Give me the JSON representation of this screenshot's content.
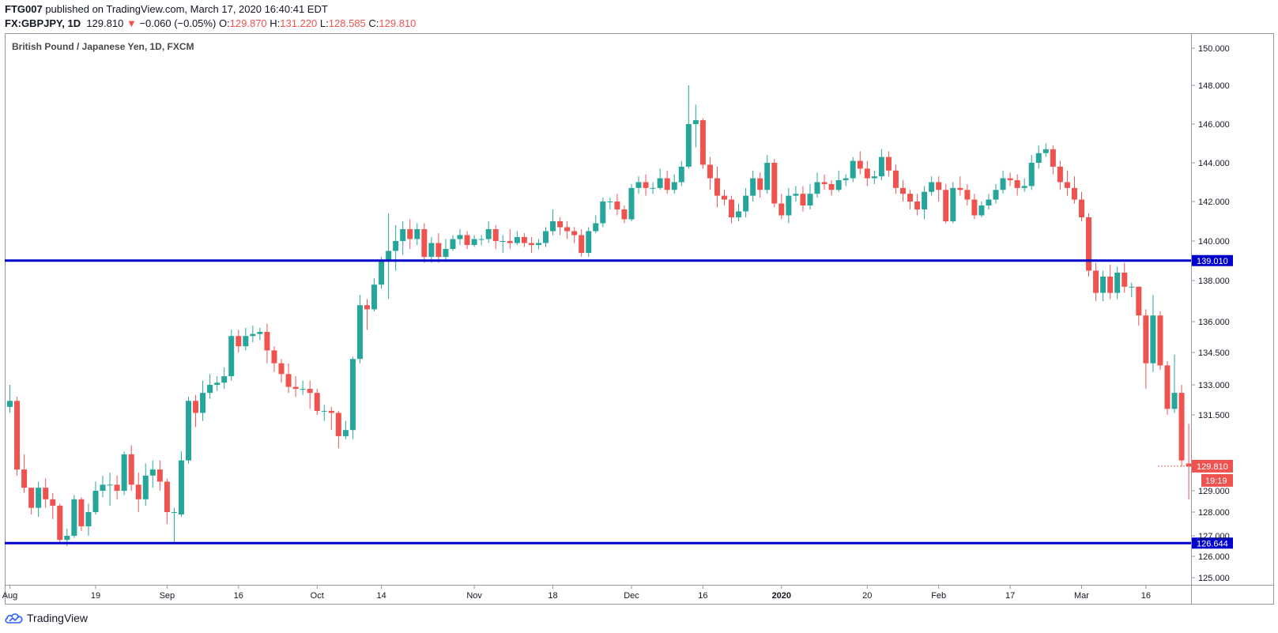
{
  "header": {
    "author": "FTG007",
    "published": "published on TradingView.com, March 17, 2020 16:40:41 EDT",
    "symbol": "FX:GBPJPY, 1D",
    "last": "129.810",
    "change": "−0.060 (−0.05%)",
    "o_label": "O:",
    "o_value": "129.870",
    "h_label": "H:",
    "h_value": "131.220",
    "l_label": "L:",
    "l_value": "128.585",
    "c_label": "C:",
    "c_value": "129.810"
  },
  "footer": {
    "brand": "TradingView"
  },
  "colors": {
    "up": "#26a69a",
    "down": "#ef5350",
    "level": "#0000cc",
    "grid": "#e0e3eb"
  },
  "chart_data": {
    "type": "candlestick",
    "title": "British Pound / Japanese Yen, 1D, FXCM",
    "y_ticks": [
      "125.000",
      "126.000",
      "127.000",
      "128.000",
      "129.000",
      "131.500",
      "133.000",
      "134.500",
      "136.000",
      "138.000",
      "140.000",
      "142.000",
      "144.000",
      "146.000",
      "148.000",
      "150.000"
    ],
    "y_tick_values": [
      125.0,
      126.0,
      127.0,
      128.0,
      129.0,
      131.5,
      133.0,
      134.5,
      136.0,
      138.0,
      140.0,
      142.0,
      144.0,
      146.0,
      148.0,
      150.0
    ],
    "x_labels": [
      "Aug",
      "19",
      "Sep",
      "16",
      "Oct",
      "14",
      "Nov",
      "18",
      "Dec",
      "16",
      "2020",
      "20",
      "Feb",
      "17",
      "Mar",
      "16"
    ],
    "x_label_index": [
      0,
      12,
      22,
      32,
      43,
      52,
      65,
      76,
      87,
      97,
      108,
      120,
      130,
      140,
      150,
      159
    ],
    "levels": [
      {
        "value": 139.01,
        "label": "139.010"
      },
      {
        "value": 126.644,
        "label": "126.644"
      }
    ],
    "last_price": {
      "value": 129.81,
      "label": "129.810",
      "countdown": "19:19"
    },
    "candles": [
      [
        131.9,
        132.2,
        133.0,
        131.6
      ],
      [
        132.2,
        129.7,
        132.4,
        129.5
      ],
      [
        129.7,
        129.1,
        130.2,
        128.9
      ],
      [
        129.1,
        128.2,
        129.0,
        127.9
      ],
      [
        128.2,
        129.1,
        129.3,
        127.8
      ],
      [
        129.1,
        128.6,
        129.4,
        128.2
      ],
      [
        128.6,
        128.3,
        128.9,
        127.7
      ],
      [
        128.3,
        126.8,
        128.4,
        126.7
      ],
      [
        126.8,
        127.0,
        127.3,
        126.5
      ],
      [
        127.0,
        128.6,
        128.8,
        126.9
      ],
      [
        128.6,
        127.4,
        128.7,
        127.2
      ],
      [
        127.4,
        128.0,
        128.4,
        127.0
      ],
      [
        128.0,
        129.0,
        129.3,
        127.9
      ],
      [
        129.0,
        129.2,
        129.5,
        128.7
      ],
      [
        129.2,
        129.2,
        129.6,
        128.3
      ],
      [
        129.2,
        129.0,
        129.5,
        128.6
      ],
      [
        129.0,
        130.2,
        130.3,
        128.8
      ],
      [
        130.2,
        129.2,
        130.5,
        129.0
      ],
      [
        129.2,
        128.6,
        129.6,
        128.0
      ],
      [
        128.6,
        129.5,
        129.9,
        128.3
      ],
      [
        129.5,
        129.7,
        130.0,
        129.1
      ],
      [
        129.7,
        129.3,
        130.0,
        129.0
      ],
      [
        129.3,
        128.0,
        129.4,
        127.5
      ],
      [
        128.0,
        128.0,
        128.2,
        126.7
      ],
      [
        127.9,
        130.0,
        130.3,
        127.8
      ],
      [
        130.0,
        132.2,
        132.4,
        129.9
      ],
      [
        132.2,
        131.6,
        132.5,
        131.1
      ],
      [
        131.6,
        132.6,
        133.2,
        131.3
      ],
      [
        132.6,
        133.0,
        133.5,
        132.3
      ],
      [
        133.0,
        133.1,
        133.4,
        132.7
      ],
      [
        133.1,
        133.4,
        133.8,
        132.8
      ],
      [
        133.4,
        135.3,
        135.6,
        133.2
      ],
      [
        135.3,
        134.8,
        135.6,
        134.5
      ],
      [
        134.8,
        135.3,
        135.7,
        134.6
      ],
      [
        135.3,
        135.4,
        135.8,
        135.0
      ],
      [
        135.4,
        135.5,
        135.7,
        135.1
      ],
      [
        135.5,
        134.6,
        135.9,
        134.0
      ],
      [
        134.6,
        134.0,
        134.8,
        133.6
      ],
      [
        134.0,
        133.5,
        134.2,
        133.1
      ],
      [
        133.5,
        132.9,
        134.0,
        132.6
      ],
      [
        132.9,
        132.8,
        133.4,
        132.4
      ],
      [
        132.8,
        132.8,
        133.2,
        132.5
      ],
      [
        132.8,
        132.6,
        133.2,
        131.8
      ],
      [
        132.6,
        131.7,
        132.8,
        131.5
      ],
      [
        131.7,
        131.7,
        132.0,
        131.3
      ],
      [
        131.7,
        131.6,
        131.9,
        131.0
      ],
      [
        131.6,
        130.8,
        131.7,
        130.4
      ],
      [
        130.8,
        131.0,
        131.3,
        130.7
      ],
      [
        131.0,
        134.2,
        134.3,
        130.7
      ],
      [
        134.2,
        136.8,
        137.3,
        134.0
      ],
      [
        136.8,
        136.6,
        137.1,
        135.6
      ],
      [
        136.6,
        137.8,
        138.1,
        136.5
      ],
      [
        137.8,
        139.0,
        139.2,
        137.6
      ],
      [
        139.0,
        139.5,
        141.4,
        137.1
      ],
      [
        139.5,
        140.0,
        140.8,
        138.5
      ],
      [
        140.0,
        140.6,
        141.0,
        139.3
      ],
      [
        140.6,
        140.1,
        141.1,
        139.6
      ],
      [
        140.1,
        140.6,
        140.9,
        139.8
      ],
      [
        140.6,
        139.2,
        140.9,
        138.9
      ],
      [
        139.2,
        139.9,
        140.2,
        138.9
      ],
      [
        139.9,
        139.2,
        140.4,
        138.9
      ],
      [
        139.2,
        139.6,
        140.1,
        139.0
      ],
      [
        139.6,
        140.1,
        140.3,
        139.5
      ],
      [
        140.1,
        140.3,
        140.6,
        139.8
      ],
      [
        140.3,
        139.8,
        140.5,
        139.6
      ],
      [
        139.8,
        140.1,
        140.3,
        139.7
      ],
      [
        140.1,
        140.1,
        140.3,
        139.8
      ],
      [
        140.1,
        140.6,
        141.0,
        139.9
      ],
      [
        140.6,
        140.0,
        140.8,
        139.6
      ],
      [
        140.0,
        140.0,
        140.3,
        139.4
      ],
      [
        140.0,
        139.9,
        140.6,
        139.6
      ],
      [
        139.9,
        140.2,
        140.5,
        139.8
      ],
      [
        140.2,
        139.9,
        140.4,
        139.7
      ],
      [
        139.9,
        139.8,
        140.2,
        139.4
      ],
      [
        139.8,
        139.9,
        140.1,
        139.6
      ],
      [
        139.9,
        140.5,
        140.7,
        139.7
      ],
      [
        140.5,
        141.0,
        141.6,
        140.3
      ],
      [
        141.0,
        140.7,
        141.2,
        140.3
      ],
      [
        140.7,
        140.5,
        141.0,
        140.1
      ],
      [
        140.5,
        140.3,
        140.7,
        139.9
      ],
      [
        140.3,
        139.4,
        140.6,
        139.2
      ],
      [
        139.4,
        140.5,
        140.7,
        139.2
      ],
      [
        140.5,
        140.9,
        141.3,
        140.4
      ],
      [
        140.9,
        142.0,
        142.2,
        140.7
      ],
      [
        142.0,
        142.0,
        142.2,
        141.6
      ],
      [
        142.0,
        141.6,
        142.4,
        141.3
      ],
      [
        141.6,
        141.1,
        141.8,
        140.9
      ],
      [
        141.1,
        142.7,
        142.9,
        141.0
      ],
      [
        142.7,
        143.0,
        143.3,
        142.4
      ],
      [
        143.0,
        142.7,
        143.4,
        142.3
      ],
      [
        142.7,
        142.7,
        143.0,
        142.4
      ],
      [
        142.7,
        143.2,
        143.7,
        142.6
      ],
      [
        143.2,
        142.6,
        143.6,
        142.4
      ],
      [
        142.6,
        143.0,
        143.4,
        142.4
      ],
      [
        143.0,
        143.8,
        144.1,
        142.8
      ],
      [
        143.8,
        146.0,
        148.0,
        143.7
      ],
      [
        146.0,
        146.2,
        147.0,
        144.8
      ],
      [
        146.2,
        143.9,
        146.3,
        143.7
      ],
      [
        143.9,
        143.2,
        144.3,
        142.6
      ],
      [
        143.2,
        142.3,
        143.8,
        141.7
      ],
      [
        142.3,
        142.1,
        142.6,
        141.8
      ],
      [
        142.1,
        141.2,
        142.3,
        140.9
      ],
      [
        141.2,
        141.5,
        141.9,
        141.0
      ],
      [
        141.5,
        142.3,
        142.7,
        141.2
      ],
      [
        142.3,
        143.2,
        143.6,
        142.0
      ],
      [
        143.2,
        142.6,
        143.5,
        142.2
      ],
      [
        142.6,
        144.0,
        144.4,
        142.4
      ],
      [
        144.0,
        141.9,
        144.2,
        141.7
      ],
      [
        141.9,
        141.3,
        142.4,
        141.1
      ],
      [
        141.3,
        142.3,
        142.7,
        140.9
      ],
      [
        142.3,
        142.4,
        142.8,
        142.0
      ],
      [
        142.4,
        141.8,
        142.8,
        141.5
      ],
      [
        141.8,
        142.4,
        142.9,
        141.6
      ],
      [
        142.4,
        143.0,
        143.5,
        142.2
      ],
      [
        143.0,
        142.9,
        143.4,
        142.6
      ],
      [
        142.9,
        142.6,
        143.1,
        142.3
      ],
      [
        142.6,
        143.1,
        143.6,
        142.5
      ],
      [
        143.1,
        143.2,
        143.4,
        142.8
      ],
      [
        143.2,
        144.1,
        144.3,
        143.0
      ],
      [
        144.1,
        143.7,
        144.6,
        143.4
      ],
      [
        143.7,
        143.2,
        144.1,
        142.8
      ],
      [
        143.2,
        143.3,
        143.6,
        142.9
      ],
      [
        143.3,
        144.3,
        144.7,
        143.1
      ],
      [
        144.3,
        143.6,
        144.6,
        143.3
      ],
      [
        143.6,
        142.7,
        143.9,
        142.4
      ],
      [
        142.7,
        142.4,
        143.1,
        142.0
      ],
      [
        142.4,
        142.0,
        142.6,
        141.6
      ],
      [
        142.0,
        141.6,
        142.4,
        141.3
      ],
      [
        141.6,
        142.5,
        142.8,
        141.1
      ],
      [
        142.5,
        143.0,
        143.3,
        142.3
      ],
      [
        143.0,
        142.6,
        143.3,
        142.0
      ],
      [
        142.6,
        141.0,
        142.9,
        140.9
      ],
      [
        141.0,
        142.7,
        143.0,
        140.9
      ],
      [
        142.7,
        142.6,
        143.3,
        142.3
      ],
      [
        142.6,
        142.1,
        142.9,
        141.8
      ],
      [
        142.1,
        141.3,
        142.4,
        141.1
      ],
      [
        141.3,
        141.8,
        142.0,
        141.2
      ],
      [
        141.8,
        142.1,
        142.4,
        141.6
      ],
      [
        142.1,
        142.6,
        142.9,
        141.9
      ],
      [
        142.6,
        143.2,
        143.6,
        142.4
      ],
      [
        143.2,
        143.1,
        143.5,
        142.8
      ],
      [
        143.1,
        142.7,
        143.4,
        142.3
      ],
      [
        142.7,
        142.8,
        143.2,
        142.5
      ],
      [
        142.8,
        144.0,
        144.4,
        142.6
      ],
      [
        144.0,
        144.5,
        144.9,
        143.7
      ],
      [
        144.5,
        144.7,
        145.0,
        144.3
      ],
      [
        144.7,
        143.8,
        144.9,
        143.4
      ],
      [
        143.8,
        143.0,
        144.1,
        142.6
      ],
      [
        143.0,
        142.7,
        143.6,
        142.3
      ],
      [
        142.7,
        142.1,
        143.3,
        141.9
      ],
      [
        142.1,
        141.2,
        142.5,
        141.0
      ],
      [
        141.2,
        138.5,
        141.4,
        138.2
      ],
      [
        138.5,
        137.4,
        138.9,
        137.0
      ],
      [
        137.4,
        138.2,
        138.5,
        137.0
      ],
      [
        138.2,
        137.4,
        138.8,
        137.1
      ],
      [
        137.4,
        138.4,
        138.7,
        137.1
      ],
      [
        138.4,
        137.7,
        138.9,
        137.4
      ],
      [
        137.7,
        137.7,
        137.9,
        137.2
      ],
      [
        137.7,
        136.3,
        137.7,
        135.8
      ],
      [
        136.3,
        134.0,
        136.6,
        132.8
      ],
      [
        134.0,
        136.3,
        137.3,
        133.6
      ],
      [
        136.3,
        133.9,
        136.5,
        133.7
      ],
      [
        133.9,
        131.8,
        134.1,
        131.5
      ],
      [
        131.8,
        132.6,
        134.4,
        131.6
      ],
      [
        132.6,
        130.0,
        133.0,
        129.8
      ],
      [
        129.9,
        129.8,
        131.2,
        128.6
      ]
    ]
  }
}
